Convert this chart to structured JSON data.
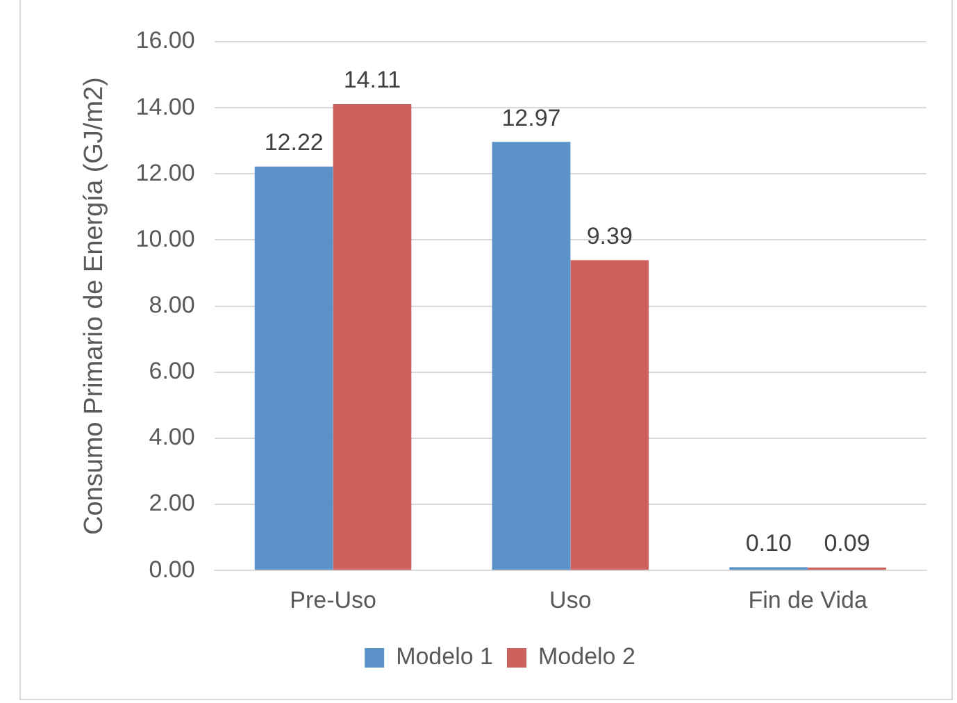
{
  "chart_data": {
    "type": "bar",
    "ylabel": "Consumo Primario de Energía (GJ/m2)",
    "categories": [
      "Pre-Uso",
      "Uso",
      "Fin de Vida"
    ],
    "series": [
      {
        "name": "Modelo 1",
        "color": "#5b93c9",
        "values": [
          12.22,
          12.97,
          0.1
        ],
        "value_labels": [
          "12.22",
          "12.97",
          "0.10"
        ]
      },
      {
        "name": "Modelo 2",
        "color": "#cc625b",
        "values": [
          14.11,
          9.39,
          0.09
        ],
        "value_labels": [
          "14.11",
          "9.39",
          "0.09"
        ]
      }
    ],
    "ylim": [
      0,
      16
    ],
    "yticks": [
      {
        "value": 0,
        "label": "0.00"
      },
      {
        "value": 2,
        "label": "2.00"
      },
      {
        "value": 4,
        "label": "4.00"
      },
      {
        "value": 6,
        "label": "6.00"
      },
      {
        "value": 8,
        "label": "8.00"
      },
      {
        "value": 10,
        "label": "10.00"
      },
      {
        "value": 12,
        "label": "12.00"
      },
      {
        "value": 14,
        "label": "14.00"
      },
      {
        "value": 16,
        "label": "16.00"
      }
    ],
    "grid": "y",
    "legend": "bottom"
  }
}
